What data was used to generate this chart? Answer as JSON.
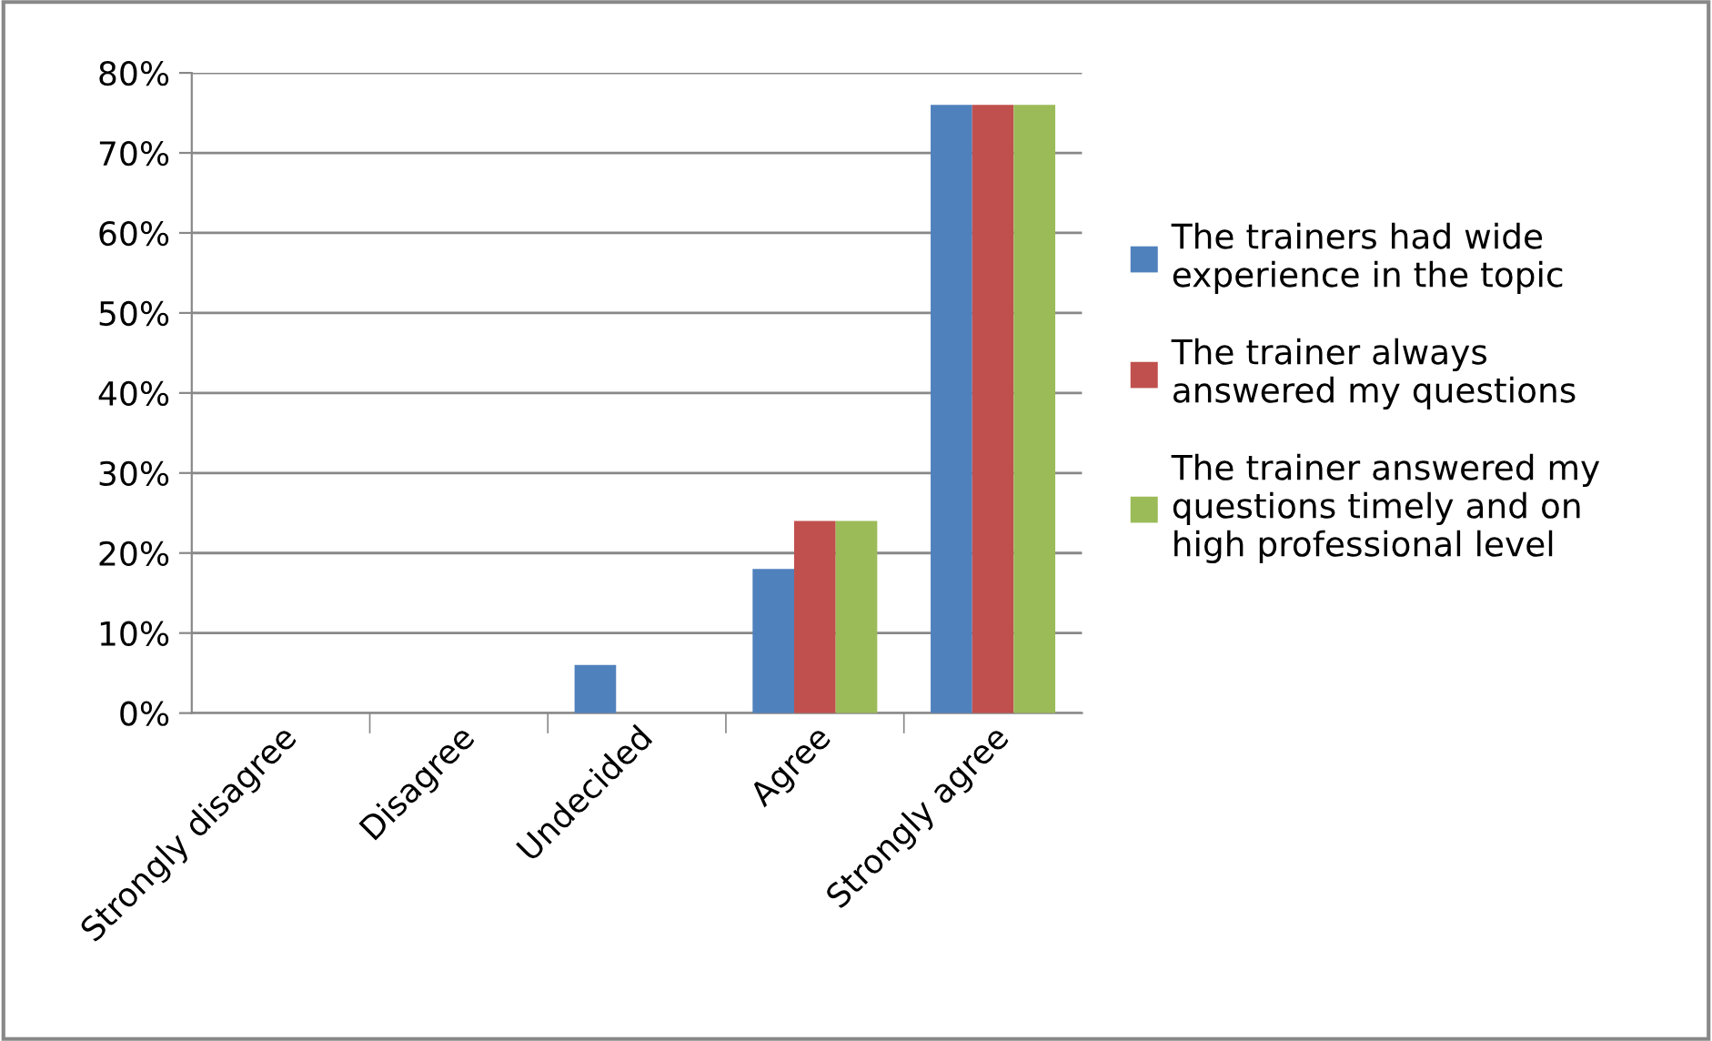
{
  "chart_data": {
    "type": "bar",
    "categories": [
      "Strongly disagree",
      "Disagree",
      "Undecided",
      "Agree",
      "Strongly agree"
    ],
    "series": [
      {
        "name": "The trainers had wide\nexperience in the topic",
        "color": "#4f81bd",
        "values": [
          0,
          0,
          6,
          18,
          76
        ]
      },
      {
        "name": "The trainer always\nanswered my questions",
        "color": "#c0504d",
        "values": [
          0,
          0,
          0,
          24,
          76
        ]
      },
      {
        "name": "The trainer answered my\nquestions timely and on\nhigh professional level",
        "color": "#9bbb59",
        "values": [
          0,
          0,
          0,
          24,
          76
        ]
      }
    ],
    "ylim": [
      0,
      80
    ],
    "yticks": [
      {
        "value": 0,
        "label": "0%"
      },
      {
        "value": 10,
        "label": "10%"
      },
      {
        "value": 20,
        "label": "20%"
      },
      {
        "value": 30,
        "label": "30%"
      },
      {
        "value": 40,
        "label": "40%"
      },
      {
        "value": 50,
        "label": "50%"
      },
      {
        "value": 60,
        "label": "60%"
      },
      {
        "value": 70,
        "label": "70%"
      },
      {
        "value": 80,
        "label": "80%"
      }
    ],
    "grid": "y",
    "legend": "right"
  }
}
